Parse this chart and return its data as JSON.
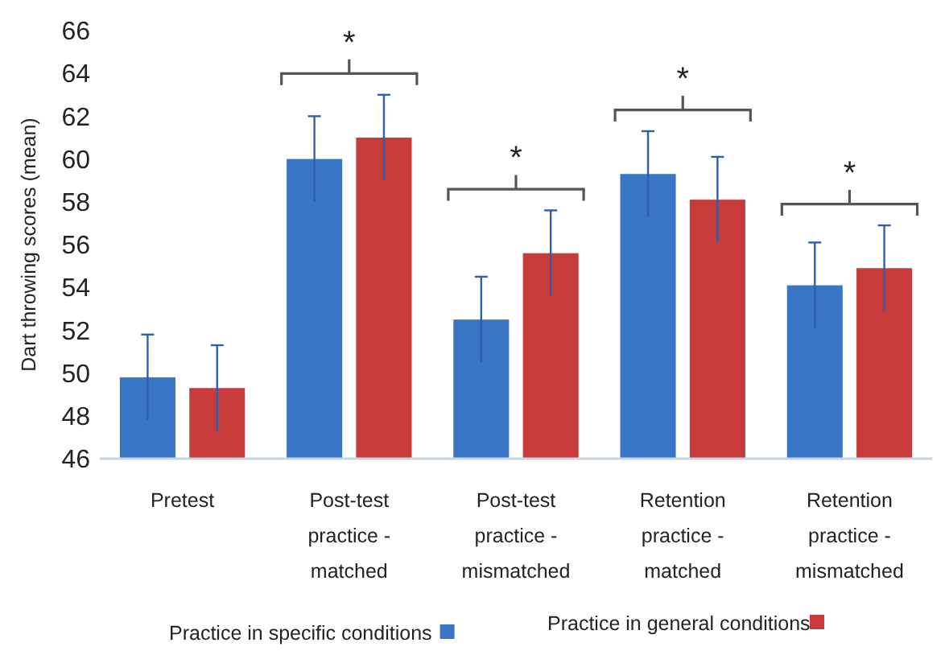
{
  "chart_data": {
    "type": "bar",
    "ylabel": "Dart throwing scores (mean)",
    "categories": [
      "Pretest",
      "Post-test practice - matched",
      "Post-test practice - mismatched",
      "Retention practice - matched",
      "Retention practice - mismatched"
    ],
    "series": [
      {
        "name": "Practice in specific conditions",
        "color": "#3a76c6",
        "values": [
          49.8,
          60,
          52.5,
          59.3,
          54.1
        ],
        "errors": [
          2,
          2,
          2,
          2,
          2
        ]
      },
      {
        "name": "Practice in general conditions",
        "color": "#c73b3b",
        "values": [
          49.3,
          61,
          55.6,
          58.1,
          54.9
        ],
        "errors": [
          2,
          2,
          2,
          2,
          2
        ]
      }
    ],
    "ylim": [
      46,
      66
    ],
    "yticks": [
      46,
      48,
      50,
      52,
      54,
      56,
      58,
      60,
      62,
      64,
      66
    ],
    "grid": false,
    "legend": "bottom",
    "annotations": [
      "*",
      "*",
      "*",
      "*"
    ]
  }
}
